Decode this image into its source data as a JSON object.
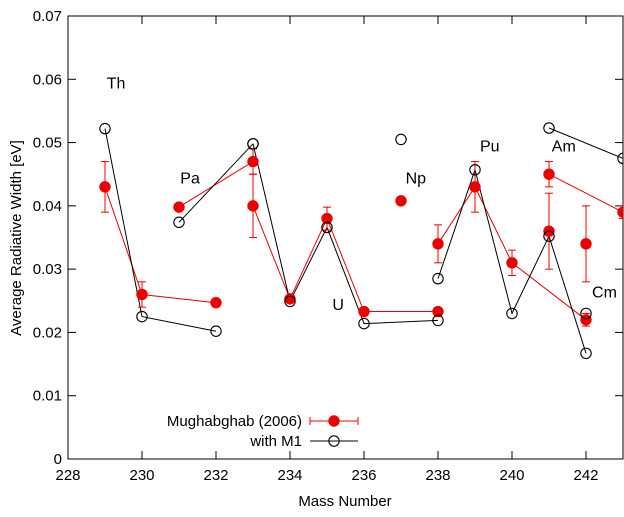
{
  "chart_data": {
    "type": "scatter",
    "title": "",
    "xlabel": "Mass Number",
    "ylabel": "Average Radiative Width [eV]",
    "xlim": [
      228,
      243
    ],
    "ylim": [
      0,
      0.07
    ],
    "xticks": [
      "228",
      "230",
      "232",
      "234",
      "236",
      "238",
      "240",
      "242"
    ],
    "yticks": [
      "0",
      "0.01",
      "0.02",
      "0.03",
      "0.04",
      "0.05",
      "0.06",
      "0.07"
    ],
    "grid": false,
    "legend_position": "bottom-left",
    "element_labels": [
      {
        "text": "Th",
        "x": 229.3,
        "y": 0.0595
      },
      {
        "text": "Pa",
        "x": 231.3,
        "y": 0.0445
      },
      {
        "text": "U",
        "x": 235.3,
        "y": 0.0245
      },
      {
        "text": "Np",
        "x": 237.4,
        "y": 0.0445
      },
      {
        "text": "Pu",
        "x": 239.4,
        "y": 0.0495
      },
      {
        "text": "Am",
        "x": 241.4,
        "y": 0.0495
      },
      {
        "text": "Cm",
        "x": 242.5,
        "y": 0.0265
      }
    ],
    "series": [
      {
        "name": "Mughabghab (2006)",
        "color": "#ee0000",
        "marker": "filled-circle",
        "has_errorbars": true,
        "groups": [
          [
            {
              "x": 229,
              "y": 0.043,
              "err": 0.004
            },
            {
              "x": 230,
              "y": 0.026,
              "err": 0.002
            },
            {
              "x": 232,
              "y": 0.0247,
              "err": 0.0005
            }
          ],
          [
            {
              "x": 231,
              "y": 0.0398,
              "err": 0.0005
            },
            {
              "x": 233,
              "y": 0.047,
              "err": 0.002
            }
          ],
          [
            {
              "x": 233,
              "y": 0.04,
              "err": 0.005
            },
            {
              "x": 234,
              "y": 0.0253,
              "err": 0.0005
            },
            {
              "x": 235,
              "y": 0.038,
              "err": 0.0018
            },
            {
              "x": 236,
              "y": 0.0233,
              "err": 0.0005
            },
            {
              "x": 238,
              "y": 0.0233,
              "err": 0.0005
            }
          ],
          [
            {
              "x": 237,
              "y": 0.0408,
              "err": 0.0004
            }
          ],
          [
            {
              "x": 238,
              "y": 0.034,
              "err": 0.003
            },
            {
              "x": 239,
              "y": 0.043,
              "err": 0.004
            },
            {
              "x": 240,
              "y": 0.031,
              "err": 0.002
            },
            {
              "x": 242,
              "y": 0.022,
              "err": 0.001
            }
          ],
          [
            {
              "x": 241,
              "y": 0.036,
              "err": 0.006
            }
          ],
          [
            {
              "x": 241,
              "y": 0.045,
              "err": 0.002
            },
            {
              "x": 243,
              "y": 0.039,
              "err": 0.001
            }
          ],
          [
            {
              "x": 242,
              "y": 0.034,
              "err": 0.006
            }
          ]
        ]
      },
      {
        "name": "with M1",
        "color": "#000000",
        "marker": "open-circle",
        "has_errorbars": false,
        "groups": [
          [
            {
              "x": 229,
              "y": 0.0522
            },
            {
              "x": 230,
              "y": 0.0225
            },
            {
              "x": 232,
              "y": 0.0202
            }
          ],
          [
            {
              "x": 231,
              "y": 0.0374
            },
            {
              "x": 233,
              "y": 0.0498
            }
          ],
          [
            {
              "x": 233,
              "y": 0.0498
            },
            {
              "x": 234,
              "y": 0.0249
            },
            {
              "x": 235,
              "y": 0.0366
            },
            {
              "x": 236,
              "y": 0.0214
            },
            {
              "x": 238,
              "y": 0.0219
            }
          ],
          [
            {
              "x": 237,
              "y": 0.0505
            }
          ],
          [
            {
              "x": 238,
              "y": 0.0285
            },
            {
              "x": 239,
              "y": 0.0457
            },
            {
              "x": 240,
              "y": 0.023
            },
            {
              "x": 241,
              "y": 0.0352
            },
            {
              "x": 242,
              "y": 0.0167
            }
          ],
          [
            {
              "x": 242,
              "y": 0.023
            }
          ],
          [
            {
              "x": 241,
              "y": 0.0523
            },
            {
              "x": 243,
              "y": 0.0475
            }
          ]
        ]
      }
    ]
  }
}
